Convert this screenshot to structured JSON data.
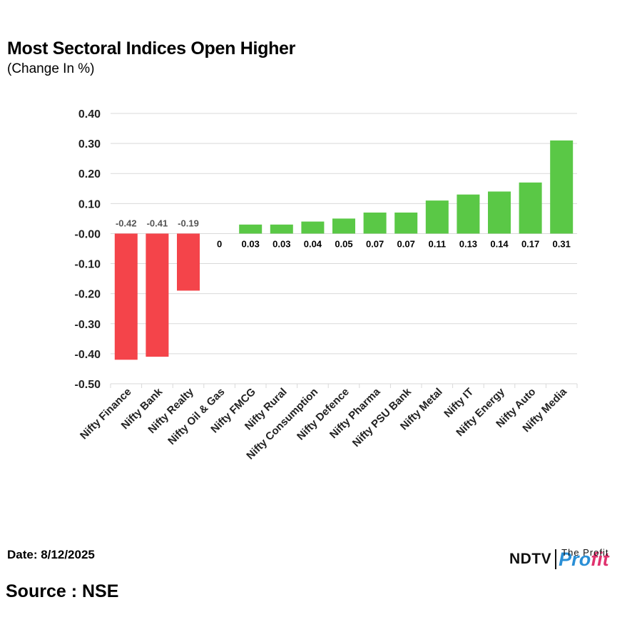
{
  "header": {
    "title": "Most Sectoral Indices Open Higher",
    "subtitle": "(Change In %)"
  },
  "footer": {
    "date": "Date: 8/12/2025",
    "source": "Source : NSE"
  },
  "logo": {
    "ndtv": "NDTV",
    "profit_a": "Pro",
    "profit_b": "fit",
    "tagline": "The Profit"
  },
  "colors": {
    "negative": "#f4444a",
    "positive": "#5ac846",
    "grid": "#d9d9d9",
    "axis_text": "#222222",
    "neg_label": "#555555"
  },
  "chart_data": {
    "type": "bar",
    "categories": [
      "Nifty Finance",
      "Nifty Bank",
      "Nifty Realty",
      "Nifty Oil & Gas",
      "Nifty FMCG",
      "Nifty Rural",
      "Nifty Consumption",
      "Nifty Defence",
      "Nifty Pharma",
      "Nifty PSU Bank",
      "Nifty Metal",
      "Nifty IT",
      "Nifty Energy",
      "Nifty Auto",
      "Nifty Media"
    ],
    "values": [
      -0.42,
      -0.41,
      -0.19,
      0,
      0.03,
      0.03,
      0.04,
      0.05,
      0.07,
      0.07,
      0.11,
      0.13,
      0.14,
      0.17,
      0.31
    ],
    "data_labels": [
      "-0.42",
      "-0.41",
      "-0.19",
      "0",
      "0.03",
      "0.03",
      "0.04",
      "0.05",
      "0.07",
      "0.07",
      "0.11",
      "0.13",
      "0.14",
      "0.17",
      "0.31"
    ],
    "y_ticks": [
      "0.40",
      "0.30",
      "0.20",
      "0.10",
      "-0.00",
      "-0.10",
      "-0.20",
      "-0.30",
      "-0.40",
      "-0.50"
    ],
    "y_tick_values": [
      0.4,
      0.3,
      0.2,
      0.1,
      0,
      -0.1,
      -0.2,
      -0.3,
      -0.4,
      -0.5
    ],
    "ylim": [
      -0.5,
      0.4
    ],
    "grid": true,
    "legend": "none"
  }
}
